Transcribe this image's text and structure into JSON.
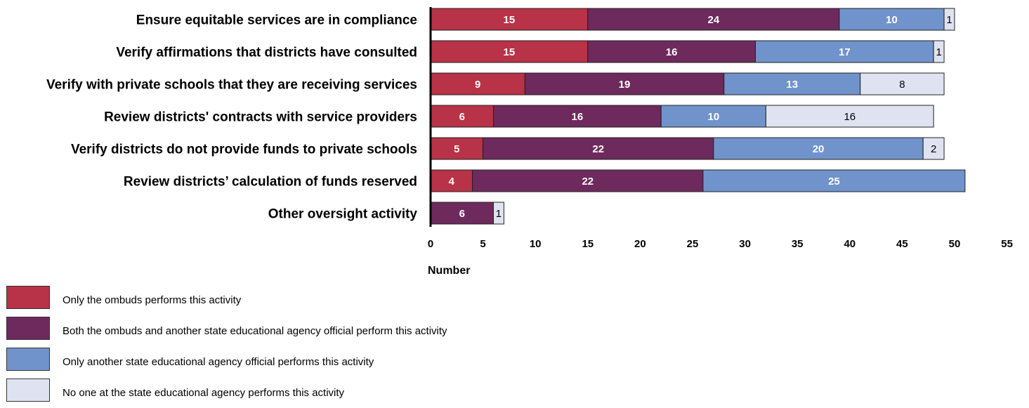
{
  "chart_data": {
    "type": "bar",
    "orientation": "horizontal",
    "stacked": true,
    "categories": [
      "Ensure equitable services are in compliance",
      "Verify affirmations that districts have consulted",
      "Verify with private schools that they are receiving services",
      "Review districts' contracts with service providers",
      "Verify districts do not provide funds to private schools",
      "Review districts’ calculation of funds reserved",
      "Other oversight activity"
    ],
    "series": [
      {
        "name": "Only the ombuds performs this activity",
        "color": "#b83347",
        "label_color": "#ffffff",
        "label_bold": true,
        "values": [
          15,
          15,
          9,
          6,
          5,
          4,
          0
        ]
      },
      {
        "name": "Both the ombuds and another state educational agency official perform this activity",
        "color": "#6e2a5c",
        "label_color": "#ffffff",
        "label_bold": true,
        "values": [
          24,
          16,
          19,
          16,
          22,
          22,
          6
        ]
      },
      {
        "name": "Only another state educational agency official performs this activity",
        "color": "#7093cc",
        "label_color": "#ffffff",
        "label_bold": true,
        "values": [
          10,
          17,
          13,
          10,
          20,
          25,
          0
        ]
      },
      {
        "name": "No one at the state educational agency performs this activity",
        "color": "#dfe3f1",
        "label_color": "#000000",
        "label_bold": false,
        "values": [
          1,
          1,
          8,
          16,
          2,
          0,
          1
        ]
      }
    ],
    "xlabel": "Number",
    "xlim": [
      0,
      55
    ],
    "xticks": [
      0,
      5,
      10,
      15,
      20,
      25,
      30,
      35,
      40,
      45,
      50,
      55
    ],
    "grid": false,
    "legend_position": "bottom-left"
  }
}
